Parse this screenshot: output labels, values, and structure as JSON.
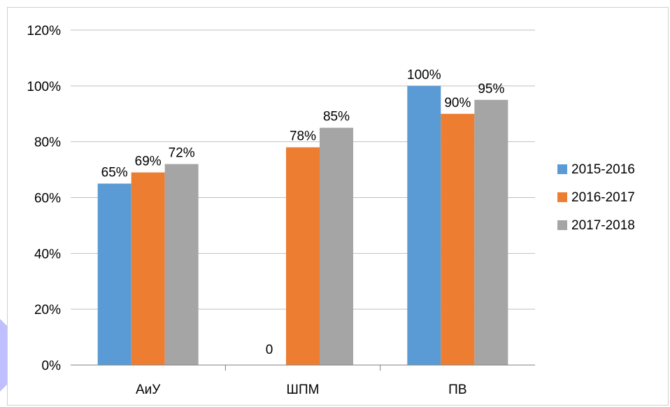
{
  "colors": {
    "series_2015_2016": "#5b9bd5",
    "series_2016_2017": "#ed7d31",
    "series_2017_2018": "#a5a5a5",
    "gridline": "#bfbfbf",
    "axis_line": "#7f7f7f",
    "decor_shape": "#b9b8ff"
  },
  "chart_data": {
    "type": "bar",
    "title": "",
    "xlabel": "",
    "ylabel": "",
    "categories": [
      "АиУ",
      "ШПМ",
      "ПВ"
    ],
    "series": [
      {
        "name": "2015-2016",
        "values": [
          0.65,
          0.0,
          1.0
        ],
        "labels": [
          "65%",
          "0",
          "100%"
        ]
      },
      {
        "name": "2016-2017",
        "values": [
          0.69,
          0.78,
          0.9
        ],
        "labels": [
          "69%",
          "78%",
          "90%"
        ]
      },
      {
        "name": "2017-2018",
        "values": [
          0.72,
          0.85,
          0.95
        ],
        "labels": [
          "72%",
          "85%",
          "95%"
        ]
      }
    ],
    "ylim": [
      0,
      1.2
    ],
    "y_ticks": [
      0,
      0.2,
      0.4,
      0.6,
      0.8,
      1.0,
      1.2
    ],
    "y_tick_labels": [
      "0%",
      "20%",
      "40%",
      "60%",
      "80%",
      "100%",
      "120%"
    ],
    "grid": true,
    "legend_position": "right"
  }
}
